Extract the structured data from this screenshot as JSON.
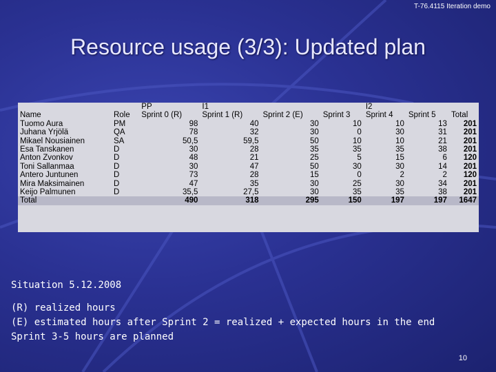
{
  "header_note": "T-76.4115 Iteration demo",
  "title": "Resource usage (3/3): Updated plan",
  "table": {
    "header_top": [
      "",
      "",
      "PP",
      "I1",
      "",
      "",
      "I2",
      "",
      ""
    ],
    "header_bottom": [
      "Name",
      "Role",
      "Sprint 0 (R)",
      "Sprint 1 (R)",
      "Sprint 2 (E)",
      "Sprint 3",
      "Sprint 4",
      "Sprint 5",
      "Total"
    ],
    "rows": [
      [
        "Tuomo Aura",
        "PM",
        "98",
        "40",
        "30",
        "10",
        "10",
        "13",
        "201"
      ],
      [
        "Juhana Yrjölä",
        "QA",
        "78",
        "32",
        "30",
        "0",
        "30",
        "31",
        "201"
      ],
      [
        "Mikael Nousiainen",
        "SA",
        "50,5",
        "59,5",
        "50",
        "10",
        "10",
        "21",
        "201"
      ],
      [
        "Esa Tanskanen",
        "D",
        "30",
        "28",
        "35",
        "35",
        "35",
        "38",
        "201"
      ],
      [
        "Anton Zvonkov",
        "D",
        "48",
        "21",
        "25",
        "5",
        "15",
        "6",
        "120"
      ],
      [
        "Toni Sallanmaa",
        "D",
        "30",
        "47",
        "50",
        "30",
        "30",
        "14",
        "201"
      ],
      [
        "Antero Juntunen",
        "D",
        "73",
        "28",
        "15",
        "0",
        "2",
        "2",
        "120"
      ],
      [
        "Mira Maksimainen",
        "D",
        "47",
        "35",
        "30",
        "25",
        "30",
        "34",
        "201"
      ],
      [
        "Keijo Palmunen",
        "D",
        "35,5",
        "27,5",
        "30",
        "35",
        "35",
        "38",
        "201"
      ]
    ],
    "total_row": [
      "Total",
      "",
      "490",
      "318",
      "295",
      "150",
      "197",
      "197",
      "1647"
    ]
  },
  "notes": {
    "situation": "Situation 5.12.2008",
    "line1": "(R) realized hours",
    "line2": "(E) estimated hours after Sprint 2 = realized + expected hours in the end",
    "line3": "Sprint 3-5 hours are planned"
  },
  "page_number": "10"
}
